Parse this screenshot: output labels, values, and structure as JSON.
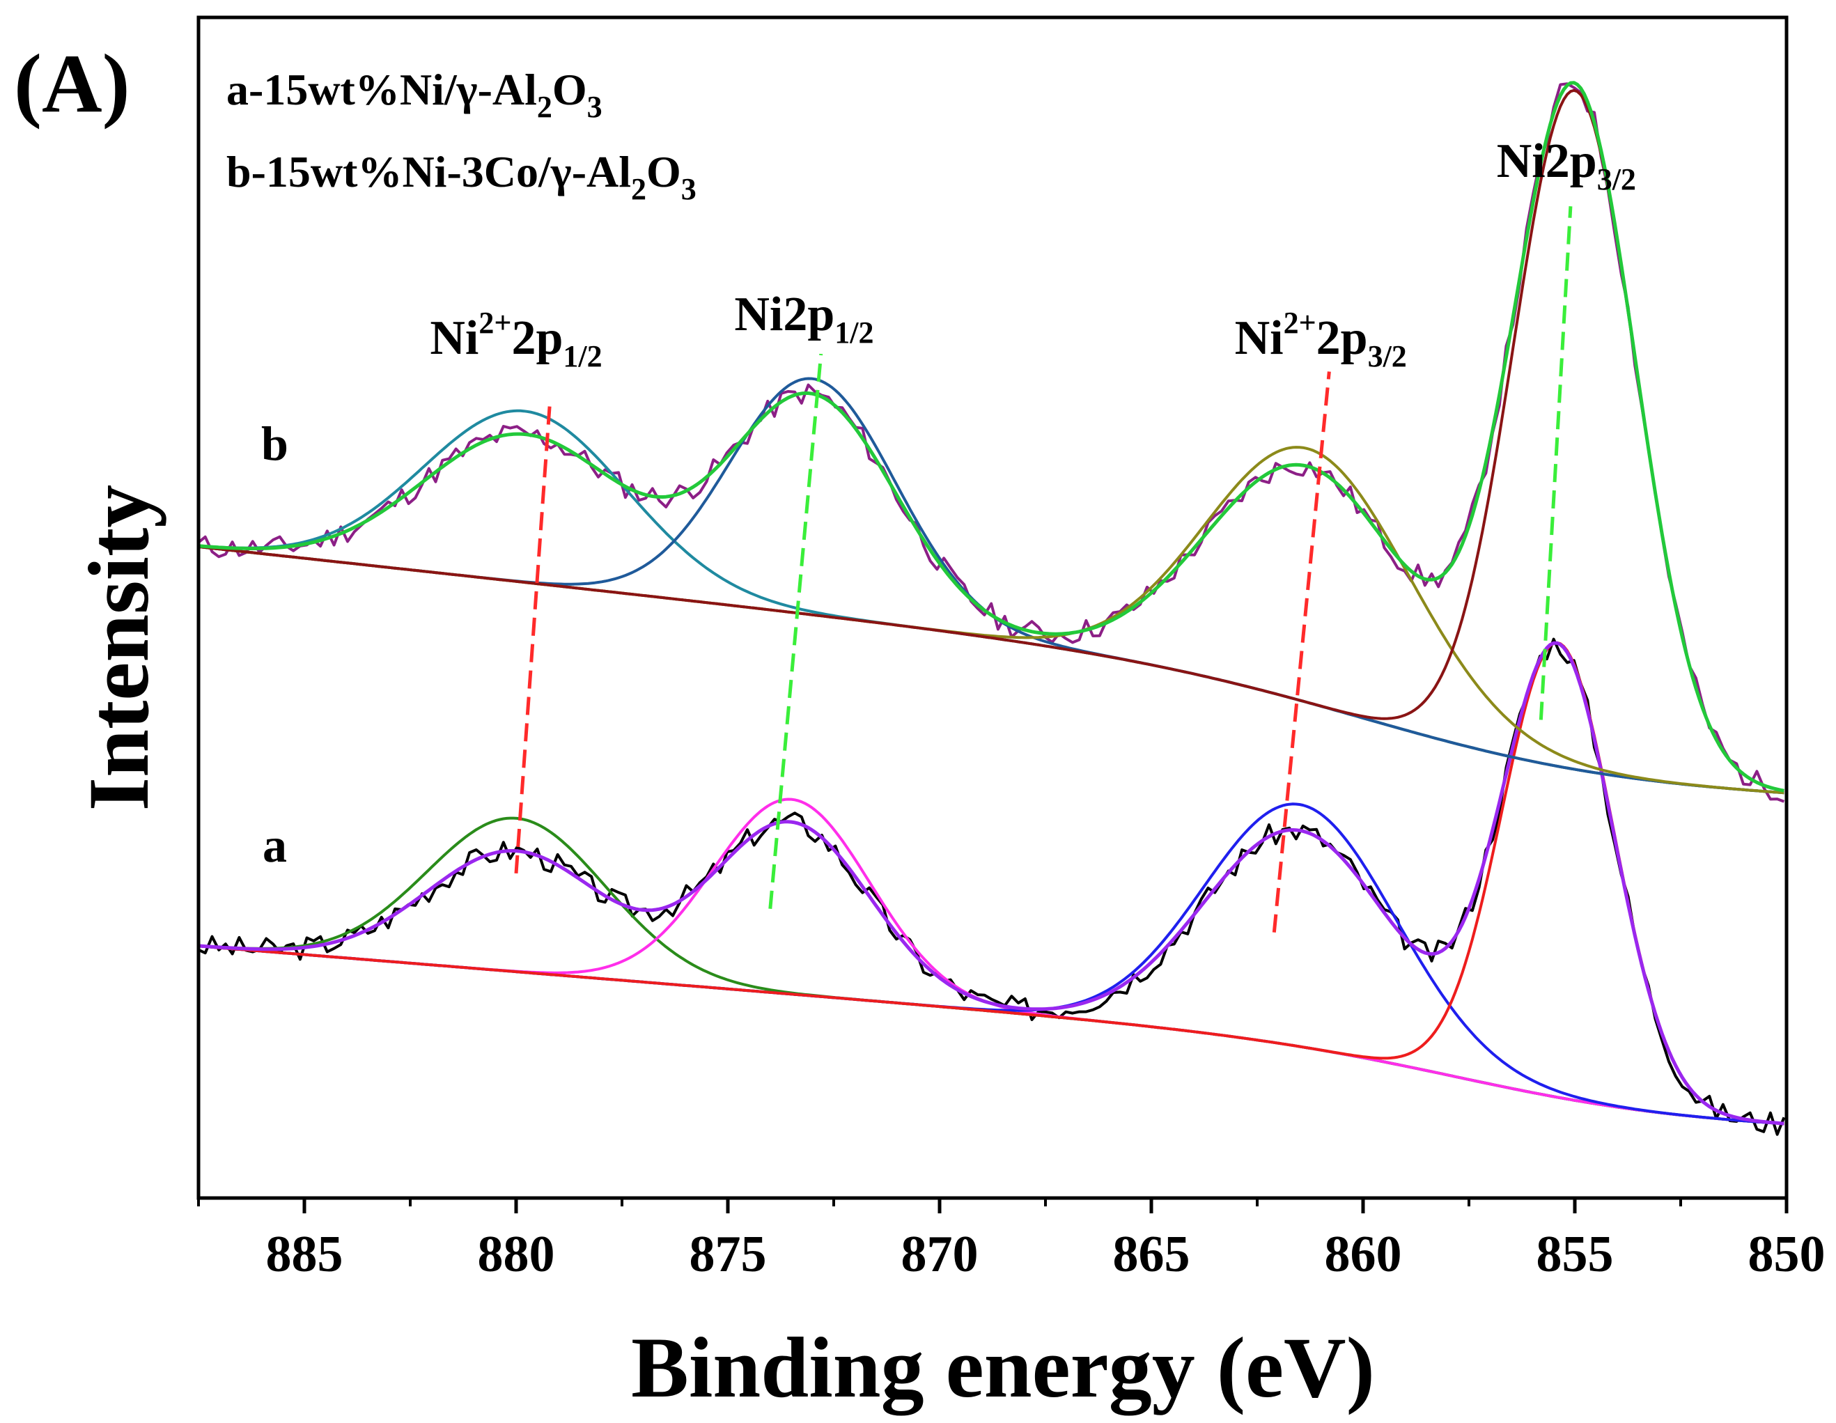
{
  "panel_label": "(A)",
  "legend": [
    {
      "id": "a",
      "parts": [
        [
          "a-15wt%Ni/γ-Al",
          ""
        ],
        [
          "2",
          "sub"
        ],
        [
          "O",
          ""
        ],
        [
          "3",
          "sub"
        ]
      ]
    },
    {
      "id": "b",
      "parts": [
        [
          "b-15wt%Ni-3Co/γ-Al",
          ""
        ],
        [
          "2",
          "sub"
        ],
        [
          "O",
          ""
        ],
        [
          "3",
          "sub"
        ]
      ]
    }
  ],
  "chart_data": {
    "type": "line",
    "title": "",
    "xlabel": "Binding energy (eV)",
    "ylabel": "Intensity",
    "xlim": [
      887.5,
      850
    ],
    "ylim": [
      0,
      100
    ],
    "xticks": [
      885,
      880,
      875,
      870,
      865,
      860,
      855,
      850
    ],
    "xtick_labels": [
      "885",
      "880",
      "875",
      "870",
      "865",
      "860",
      "855",
      "850"
    ],
    "x_minor_step": 2.5,
    "grid": false,
    "curve_labels": [
      {
        "text": "a",
        "x": 885.7,
        "y": 28.5
      },
      {
        "text": "b",
        "x": 885.7,
        "y": 62.5
      }
    ],
    "peak_labels": [
      {
        "parts": [
          [
            "Ni",
            ""
          ],
          [
            "2+",
            "sup"
          ],
          [
            "2p",
            ""
          ],
          [
            "1/2",
            "sub"
          ]
        ],
        "x": 880.0,
        "y": 71.5
      },
      {
        "parts": [
          [
            "Ni2p",
            ""
          ],
          [
            "1/2",
            "sub"
          ]
        ],
        "x": 873.2,
        "y": 73.5
      },
      {
        "parts": [
          [
            "Ni",
            ""
          ],
          [
            "2+",
            "sup"
          ],
          [
            "2p",
            ""
          ],
          [
            "3/2",
            "sub"
          ]
        ],
        "x": 861.0,
        "y": 71.5
      },
      {
        "parts": [
          [
            "Ni2p",
            ""
          ],
          [
            "3/2",
            "sub"
          ]
        ],
        "x": 855.2,
        "y": 86.5
      }
    ],
    "guide_lines": [
      {
        "color": "#ff2a2a",
        "from": [
          880.0,
          27.5
        ],
        "to": [
          879.2,
          67.5
        ]
      },
      {
        "color": "#3aee3a",
        "from": [
          874.0,
          24.5
        ],
        "to": [
          872.8,
          71.5
        ]
      },
      {
        "color": "#ff2a2a",
        "from": [
          862.1,
          22.5
        ],
        "to": [
          860.8,
          70.0
        ]
      },
      {
        "color": "#3aee3a",
        "from": [
          855.8,
          40.5
        ],
        "to": [
          855.1,
          84.0
        ]
      }
    ],
    "series": [
      {
        "name": "a raw",
        "color": "#000000",
        "width": 4,
        "style": "noisy",
        "noise": 1.0,
        "seed": 3,
        "model": {
          "bg_left": 18.5,
          "bg_right": 6.0,
          "bg_step_center": 857.0,
          "bg_step_width": 2.6,
          "bg_step_frac": 0.65,
          "peaks": [
            {
              "center": 880.0,
              "height": 10.2,
              "sigma": 2.1
            },
            {
              "center": 873.5,
              "height": 14.5,
              "sigma": 1.85
            },
            {
              "center": 861.5,
              "height": 18.3,
              "sigma": 2.25
            },
            {
              "center": 855.4,
              "height": 38.0,
              "sigma": 1.32
            }
          ]
        }
      },
      {
        "name": "a background",
        "color": "#1e1ea0",
        "width": 4,
        "model": {
          "bg_left": 18.5,
          "bg_right": 6.0,
          "bg_step_center": 857.0,
          "bg_step_width": 2.6,
          "bg_step_frac": 0.65,
          "peaks": []
        }
      },
      {
        "name": "a Ni2+ 2p1/2 component",
        "color": "#2a8c1a",
        "width": 4,
        "model": {
          "bg_left": 18.5,
          "bg_right": 6.0,
          "bg_step_center": 857.0,
          "bg_step_width": 2.6,
          "bg_step_frac": 0.65,
          "peaks": [
            {
              "center": 880.0,
              "height": 13.0,
              "sigma": 2.1
            }
          ]
        }
      },
      {
        "name": "a Ni 2p1/2 component",
        "color": "#ff2eea",
        "width": 4,
        "model": {
          "bg_left": 18.5,
          "bg_right": 6.0,
          "bg_step_center": 857.0,
          "bg_step_width": 2.6,
          "bg_step_frac": 0.65,
          "peaks": [
            {
              "center": 873.5,
              "height": 16.5,
              "sigma": 1.85
            }
          ]
        }
      },
      {
        "name": "a Ni2+ 2p3/2 component",
        "color": "#1f1fee",
        "width": 4,
        "model": {
          "bg_left": 18.5,
          "bg_right": 6.0,
          "bg_step_center": 857.0,
          "bg_step_width": 2.6,
          "bg_step_frac": 0.65,
          "peaks": [
            {
              "center": 861.5,
              "height": 20.5,
              "sigma": 2.25
            }
          ]
        }
      },
      {
        "name": "a Ni 2p3/2 component",
        "color": "#ee1d1d",
        "width": 4,
        "model": {
          "bg_left": 18.5,
          "bg_right": 6.0,
          "bg_step_center": 857.0,
          "bg_step_width": 2.6,
          "bg_step_frac": 0.65,
          "peaks": [
            {
              "center": 855.4,
              "height": 38.5,
              "sigma": 1.32
            }
          ]
        }
      },
      {
        "name": "a envelope fit",
        "color": "#9a27ef",
        "width": 5,
        "model": {
          "bg_left": 18.5,
          "bg_right": 6.0,
          "bg_step_center": 857.0,
          "bg_step_width": 2.6,
          "bg_step_frac": 0.65,
          "peaks": [
            {
              "center": 880.0,
              "height": 10.2,
              "sigma": 2.1
            },
            {
              "center": 873.5,
              "height": 14.5,
              "sigma": 1.85
            },
            {
              "center": 861.5,
              "height": 18.3,
              "sigma": 2.25
            },
            {
              "center": 855.4,
              "height": 38.0,
              "sigma": 1.32
            }
          ]
        }
      },
      {
        "name": "b raw",
        "color": "#8c1f86",
        "width": 4,
        "style": "noisy",
        "noise": 1.0,
        "seed": 11,
        "model": {
          "bg_left": 51.0,
          "bg_right": 34.0,
          "bg_step_center": 859.0,
          "bg_step_width": 3.0,
          "bg_step_frac": 0.7,
          "peaks": [
            {
              "center": 879.8,
              "height": 12.5,
              "sigma": 2.4
            },
            {
              "center": 873.0,
              "height": 18.5,
              "sigma": 1.95
            },
            {
              "center": 861.3,
              "height": 20.0,
              "sigma": 2.4
            },
            {
              "center": 855.0,
              "height": 57.5,
              "sigma": 1.45
            }
          ]
        }
      },
      {
        "name": "b background",
        "color": "#b8651a",
        "width": 4,
        "model": {
          "bg_left": 51.0,
          "bg_right": 34.0,
          "bg_step_center": 859.0,
          "bg_step_width": 3.0,
          "bg_step_frac": 0.7,
          "peaks": []
        }
      },
      {
        "name": "b Ni2+ 2p1/2 component",
        "color": "#1f8aa0",
        "width": 4,
        "model": {
          "bg_left": 51.0,
          "bg_right": 34.0,
          "bg_step_center": 859.0,
          "bg_step_width": 3.0,
          "bg_step_frac": 0.7,
          "peaks": [
            {
              "center": 879.8,
              "height": 14.5,
              "sigma": 2.4
            }
          ]
        }
      },
      {
        "name": "b Ni 2p1/2 component",
        "color": "#1f5a9a",
        "width": 4,
        "model": {
          "bg_left": 51.0,
          "bg_right": 34.0,
          "bg_step_center": 859.0,
          "bg_step_width": 3.0,
          "bg_step_frac": 0.7,
          "peaks": [
            {
              "center": 873.0,
              "height": 20.0,
              "sigma": 1.95
            }
          ]
        }
      },
      {
        "name": "b Ni2+ 2p3/2 component",
        "color": "#8c8a1a",
        "width": 4,
        "model": {
          "bg_left": 51.0,
          "bg_right": 34.0,
          "bg_step_center": 859.0,
          "bg_step_width": 3.0,
          "bg_step_frac": 0.7,
          "peaks": [
            {
              "center": 861.3,
              "height": 21.5,
              "sigma": 2.4
            }
          ]
        }
      },
      {
        "name": "b Ni 2p3/2 component",
        "color": "#8a1414",
        "width": 4,
        "model": {
          "bg_left": 51.0,
          "bg_right": 34.0,
          "bg_step_center": 859.0,
          "bg_step_width": 3.0,
          "bg_step_frac": 0.7,
          "peaks": [
            {
              "center": 855.0,
              "height": 57.5,
              "sigma": 1.45
            }
          ]
        }
      },
      {
        "name": "b envelope fit",
        "color": "#22c93a",
        "width": 5,
        "model": {
          "bg_left": 51.0,
          "bg_right": 34.0,
          "bg_step_center": 859.0,
          "bg_step_width": 3.0,
          "bg_step_frac": 0.7,
          "peaks": [
            {
              "center": 879.8,
              "height": 12.5,
              "sigma": 2.4
            },
            {
              "center": 873.0,
              "height": 18.5,
              "sigma": 1.95
            },
            {
              "center": 861.3,
              "height": 20.0,
              "sigma": 2.4
            },
            {
              "center": 855.0,
              "height": 57.5,
              "sigma": 1.45
            }
          ]
        }
      }
    ]
  }
}
